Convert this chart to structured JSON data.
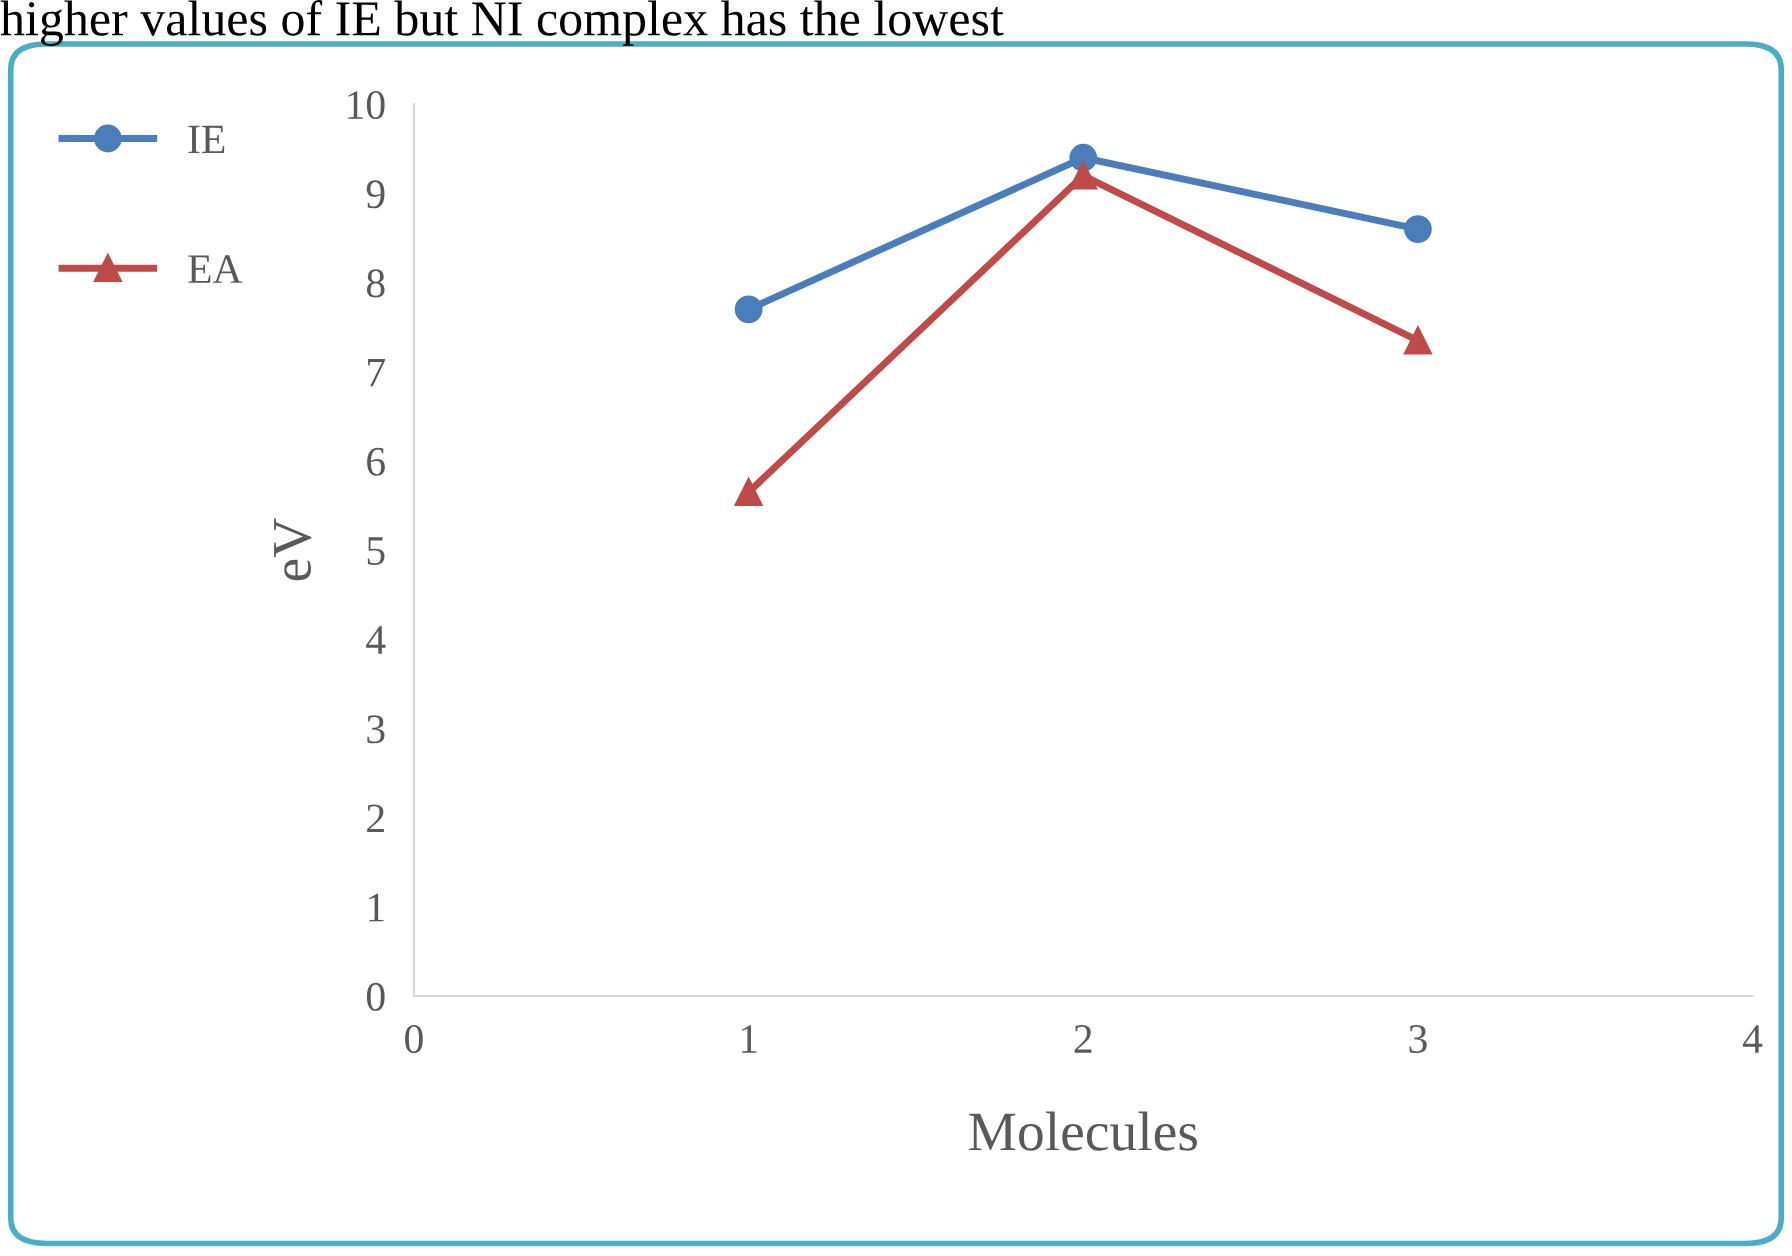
{
  "chart_data": {
    "type": "line",
    "ylabel": "eV",
    "xlabel": "Molecules",
    "annotations": [
      "higher values of IE but NI complex has the lowest"
    ],
    "x": [
      1,
      2,
      3
    ],
    "series": [
      {
        "name": "IE",
        "color": "#4a7ebb",
        "values": [
          7.7,
          9.4,
          8.6
        ],
        "marker": "circle"
      },
      {
        "name": "EA",
        "color": "#be4b48",
        "values": [
          5.65,
          9.2,
          7.35
        ],
        "marker": "triangle"
      }
    ],
    "xlim": [
      0,
      4
    ],
    "xticks": [
      0,
      1,
      2,
      3,
      4
    ],
    "ylim": [
      0,
      10
    ],
    "yticks": [
      0,
      1,
      2,
      3,
      4,
      5,
      6,
      7,
      8,
      9,
      10
    ],
    "grid": false,
    "legend": "left",
    "line_style": "solid"
  }
}
